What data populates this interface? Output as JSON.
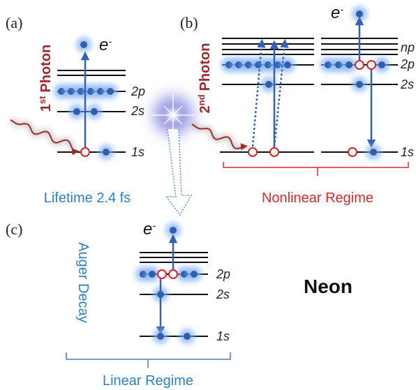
{
  "panels": [
    {
      "label": "(a)",
      "photon": {
        "base": "1",
        "sup": "st",
        "word": "Photon"
      },
      "electron": {
        "base": "e",
        "sup": "-"
      },
      "levels": [
        "2p",
        "2s",
        "1s"
      ]
    },
    {
      "label": "(b)",
      "photon": {
        "base": "2",
        "sup": "nd",
        "word": "Photon"
      },
      "electron": {
        "base": "e",
        "sup": "-"
      },
      "levels": [
        "np",
        "2p",
        "2s",
        "1s"
      ]
    },
    {
      "label": "(c)",
      "process": "Auger Decay",
      "electron": {
        "base": "e",
        "sup": "-"
      },
      "levels": [
        "2p",
        "2s",
        "1s"
      ]
    }
  ],
  "lifetime": "Lifetime 2.4 fs",
  "regimes": {
    "nonlinear": "Nonlinear Regime",
    "linear": "Linear Regime"
  },
  "element": "Neon"
}
